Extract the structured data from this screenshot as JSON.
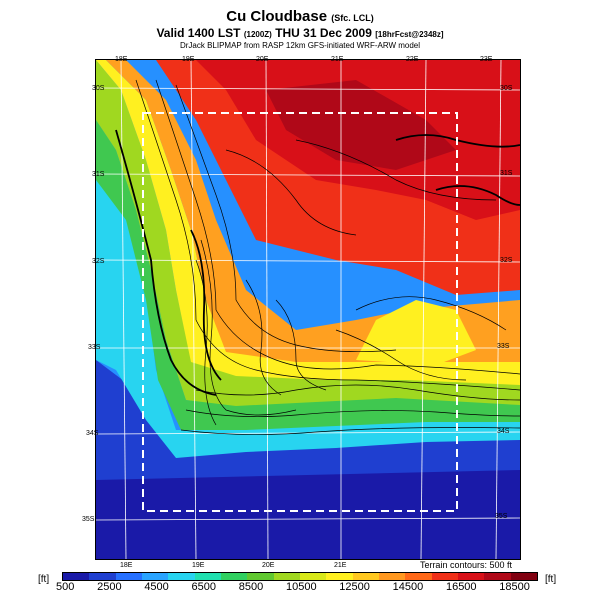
{
  "header": {
    "title": "Cu Cloudbase",
    "title_suffix": "(Sfc. LCL)",
    "valid": "Valid 1400 LST",
    "valid_code": "(1200Z)",
    "date": "THU 31 Dec 2009",
    "forecast": "[18hrFcst@2348z]",
    "credit": "DrJack BLIPMAP from RASP 12km GFS-initiated WRF-ARW model"
  },
  "axes": {
    "lon_top": [
      "18E",
      "19E",
      "20E",
      "21E",
      "22E",
      "23E"
    ],
    "lon_bottom": [
      "18E",
      "19E",
      "20E",
      "21E"
    ],
    "lat_right": [
      "30S",
      "31S",
      "32S",
      "33S",
      "34S",
      "35S"
    ],
    "lat_left": [
      "30S",
      "31S",
      "32S",
      "33S",
      "34S",
      "35S"
    ]
  },
  "colorbar": {
    "unit": "[ft]",
    "tick_labels": [
      "500",
      "2500",
      "4500",
      "6500",
      "8500",
      "10500",
      "12500",
      "14500",
      "16500",
      "18500"
    ],
    "colors": [
      "#1a1aa8",
      "#1f3fd0",
      "#2670ff",
      "#2aa4ff",
      "#28d4f0",
      "#20e0b0",
      "#30d060",
      "#60c830",
      "#a0d820",
      "#d8e818",
      "#fff020",
      "#ffc820",
      "#ff9820",
      "#ff6818",
      "#f03018",
      "#d81018",
      "#b00818",
      "#800010"
    ],
    "terrain_note": "Terrain contours: 500 ft"
  },
  "map": {
    "field": "cloudbase",
    "units": "ft",
    "domain_box": "dashed"
  }
}
